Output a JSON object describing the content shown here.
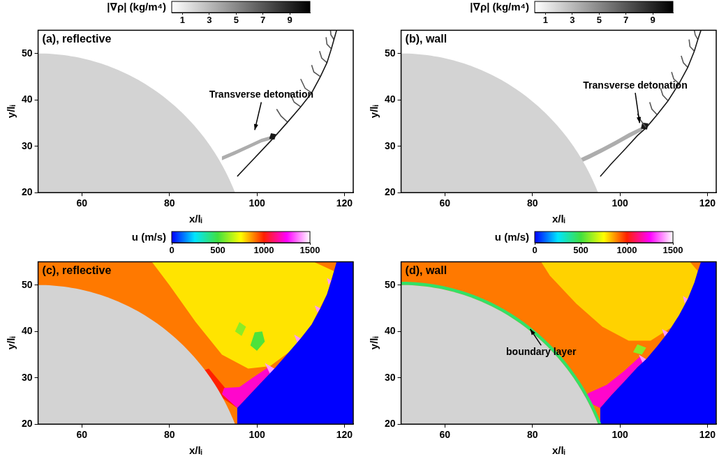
{
  "chart_data": [
    {
      "type": "field",
      "title": "(a), reflective",
      "xlabel": "x/lᵢ",
      "ylabel": "y/lᵢ",
      "xlim": [
        50,
        122
      ],
      "ylim": [
        20,
        55
      ],
      "xticks": [
        60,
        80,
        100,
        120
      ],
      "yticks": [
        20,
        30,
        40,
        50
      ],
      "grid": false,
      "colorbar": {
        "label": "|∇ρ| (kg/m⁴)",
        "range": [
          0.2,
          10.5
        ],
        "ticks": [
          1,
          3,
          5,
          7,
          9
        ],
        "colors": [
          "#ffffff",
          "#000000"
        ]
      },
      "background_value": 0.2,
      "body": {
        "center": [
          50,
          1.25
        ],
        "radius": 48.75,
        "color": "#d3d3d3"
      },
      "regions": [
        {
          "x": [
            92,
            95,
            98,
            101,
            103.5,
            103.5,
            101,
            98,
            95,
            92
          ],
          "y": [
            27,
            28.2,
            29.5,
            30.8,
            31.5,
            32.3,
            31.6,
            30.3,
            29,
            27.8
          ],
          "value": 3.5
        },
        {
          "x": [
            102.8,
            104,
            104.4,
            103.2
          ],
          "y": [
            31.6,
            31.4,
            32.6,
            32.8
          ],
          "value": 9.5
        }
      ],
      "curves": [
        {
          "x": [
            95.5,
            98,
            101,
            104,
            107,
            110,
            112.5,
            114.5,
            116,
            117,
            117.6,
            118.2
          ],
          "y": [
            23.5,
            26,
            29,
            32,
            35.2,
            38.5,
            41.5,
            45,
            48,
            51,
            53,
            55
          ],
          "value": 9.5
        },
        {
          "x": [
            107,
            105.5,
            104.5
          ],
          "y": [
            35.2,
            36.5,
            38
          ],
          "value": 7
        },
        {
          "x": [
            110,
            108.5,
            107.5
          ],
          "y": [
            38.5,
            39.5,
            41.5
          ],
          "value": 7
        },
        {
          "x": [
            112.5,
            111,
            110
          ],
          "y": [
            41.5,
            42.5,
            44.5
          ],
          "value": 7
        },
        {
          "x": [
            114.5,
            113,
            112.5
          ],
          "y": [
            45,
            46,
            47.5
          ],
          "value": 7
        },
        {
          "x": [
            116,
            114.8,
            114.3
          ],
          "y": [
            48,
            49,
            50.5
          ],
          "value": 7
        },
        {
          "x": [
            117,
            116,
            115.8
          ],
          "y": [
            51,
            52,
            53.5
          ],
          "value": 7
        },
        {
          "x": [
            117.6,
            116.9,
            116.8
          ],
          "y": [
            53,
            54,
            55
          ],
          "value": 7
        }
      ],
      "annotations": [
        {
          "text": "Transverse detonation",
          "xy": [
            99.5,
            33.5
          ],
          "xytext": [
            101,
            41
          ]
        }
      ]
    },
    {
      "type": "field",
      "title": "(b), wall",
      "xlabel": "x/lᵢ",
      "ylabel": "y/lᵢ",
      "xlim": [
        50,
        122
      ],
      "ylim": [
        20,
        55
      ],
      "xticks": [
        60,
        80,
        100,
        120
      ],
      "yticks": [
        20,
        30,
        40,
        50
      ],
      "grid": false,
      "colorbar": {
        "label": "|∇ρ| (kg/m⁴)",
        "range": [
          0.2,
          10.5
        ],
        "ticks": [
          1,
          3,
          5,
          7,
          9
        ],
        "colors": [
          "#ffffff",
          "#000000"
        ]
      },
      "background_value": 0.2,
      "body": {
        "center": [
          50,
          1.25
        ],
        "radius": 48.75,
        "color": "#d3d3d3"
      },
      "regions": [
        {
          "x": [
            90,
            93,
            96,
            99,
            102,
            105,
            105.5,
            102,
            99,
            96,
            93,
            90
          ],
          "y": [
            26,
            27.3,
            28.7,
            30.2,
            31.8,
            33.3,
            34.4,
            32.8,
            31.2,
            29.7,
            28.3,
            27
          ],
          "value": 3.5
        },
        {
          "x": [
            104.8,
            106.2,
            106.5,
            105.1
          ],
          "y": [
            33.8,
            33.6,
            34.9,
            35.1
          ],
          "value": 9.5
        }
      ],
      "curves": [
        {
          "x": [
            95.5,
            98,
            101,
            104,
            106,
            108.5,
            111,
            113.5,
            115.5,
            117,
            117.8,
            118.5
          ],
          "y": [
            23.5,
            26.2,
            29.2,
            32.3,
            34,
            36.8,
            39.8,
            43.5,
            47,
            50.5,
            53,
            55
          ],
          "value": 9.5
        },
        {
          "x": [
            106,
            104.8,
            104
          ],
          "y": [
            34,
            35.5,
            37
          ],
          "value": 7
        },
        {
          "x": [
            108.5,
            107.3,
            106.8
          ],
          "y": [
            36.8,
            38,
            39.5
          ],
          "value": 7
        },
        {
          "x": [
            111,
            109.8,
            109.3
          ],
          "y": [
            39.8,
            41,
            42.5
          ],
          "value": 7
        },
        {
          "x": [
            113.5,
            112.3,
            111.8
          ],
          "y": [
            43.5,
            44.5,
            46
          ],
          "value": 7
        },
        {
          "x": [
            115.5,
            114.5,
            114
          ],
          "y": [
            47,
            48,
            49.5
          ],
          "value": 7
        },
        {
          "x": [
            117,
            116,
            115.8
          ],
          "y": [
            50.5,
            51.5,
            53
          ],
          "value": 7
        },
        {
          "x": [
            117.8,
            117.2,
            117
          ],
          "y": [
            53,
            54,
            55
          ],
          "value": 7
        }
      ],
      "annotations": [
        {
          "text": "Transverse detonation",
          "xy": [
            104.5,
            35
          ],
          "xytext": [
            103.5,
            43
          ]
        }
      ]
    },
    {
      "type": "field",
      "title": "(c), reflective",
      "xlabel": "x/lᵢ",
      "ylabel": "y/lᵢ",
      "xlim": [
        50,
        122
      ],
      "ylim": [
        20,
        55
      ],
      "xticks": [
        60,
        80,
        100,
        120
      ],
      "yticks": [
        20,
        30,
        40,
        50
      ],
      "grid": false,
      "colorbar": {
        "label": "u (m/s)",
        "range": [
          0,
          1500
        ],
        "ticks": [
          0,
          500,
          1000,
          1500
        ],
        "colors": [
          "#0000ff",
          "#00e5ff",
          "#40e040",
          "#ffff00",
          "#ff2000",
          "#ff00ff",
          "#ffffff"
        ]
      },
      "background_value": 900,
      "body": {
        "center": [
          50,
          1.25
        ],
        "radius": 48.75,
        "color": "#d3d3d3"
      },
      "regions": [
        {
          "x": [
            76,
            90,
            104,
            113,
            117.6,
            116,
            112.5,
            108,
            103,
            98,
            92,
            86,
            80
          ],
          "y": [
            55,
            55,
            55,
            55,
            53,
            48,
            41.5,
            36,
            32.5,
            32,
            35,
            42,
            50
          ],
          "value": 780
        },
        {
          "x": [
            86,
            90,
            95.5,
            93,
            89
          ],
          "y": [
            31,
            27,
            23.5,
            27.5,
            32
          ],
          "value": 1000
        },
        {
          "x": [
            92,
            95.5,
            98,
            101,
            104,
            102.5,
            99,
            96,
            92.5
          ],
          "y": [
            26.5,
            23.5,
            26,
            29,
            32,
            32.2,
            30,
            28,
            27.8
          ],
          "value": 1200
        },
        {
          "x": [
            98.5,
            100,
            101.8,
            101.2,
            99.5
          ],
          "y": [
            37,
            35.8,
            37.8,
            40,
            39.8
          ],
          "value": 520
        },
        {
          "x": [
            95,
            96.5,
            97.5,
            96
          ],
          "y": [
            40,
            39,
            41,
            42
          ],
          "value": 600
        },
        {
          "x": [
            104,
            101.8,
            103
          ],
          "y": [
            32,
            33.2,
            30.8
          ],
          "value": 1400
        },
        {
          "x": [
            110,
            108.5,
            109.2
          ],
          "y": [
            38.5,
            39.3,
            37.6
          ],
          "value": 1400
        },
        {
          "x": [
            114.5,
            113.2,
            113.8
          ],
          "y": [
            45,
            45.6,
            44
          ],
          "value": 1400
        },
        {
          "x": [
            117,
            116,
            116.4
          ],
          "y": [
            51,
            51.5,
            50
          ],
          "value": 1400
        },
        {
          "x": [
            95.5,
            98,
            101,
            104,
            107,
            110,
            112.5,
            114.5,
            116,
            117,
            117.6,
            118.2,
            122,
            122,
            95.5
          ],
          "y": [
            23.5,
            26,
            29,
            32,
            35.2,
            38.5,
            41.5,
            45,
            48,
            51,
            53,
            55,
            55,
            20,
            20
          ],
          "value": 0
        }
      ],
      "curves": [],
      "annotations": []
    },
    {
      "type": "field",
      "title": "(d), wall",
      "xlabel": "x/lᵢ",
      "ylabel": "y/lᵢ",
      "xlim": [
        50,
        122
      ],
      "ylim": [
        20,
        55
      ],
      "xticks": [
        60,
        80,
        100,
        120
      ],
      "yticks": [
        20,
        30,
        40,
        50
      ],
      "grid": false,
      "colorbar": {
        "label": "u (m/s)",
        "range": [
          0,
          1500
        ],
        "ticks": [
          0,
          500,
          1000,
          1500
        ],
        "colors": [
          "#0000ff",
          "#00e5ff",
          "#40e040",
          "#ffff00",
          "#ff2000",
          "#ff00ff",
          "#ffffff"
        ]
      },
      "background_value": 900,
      "body": {
        "center": [
          50,
          1.25
        ],
        "radius": 48.75,
        "color": "#d3d3d3"
      },
      "boundary_layer": {
        "thickness": 0.7,
        "value": 450
      },
      "regions": [
        {
          "x": [
            82,
            96,
            110,
            116,
            117.8,
            116,
            112,
            107,
            102,
            96,
            90,
            84
          ],
          "y": [
            55,
            55,
            55,
            55,
            53,
            47,
            41,
            38,
            38,
            41,
            46,
            52
          ],
          "value": 800
        },
        {
          "x": [
            84,
            89,
            95.5,
            92,
            87
          ],
          "y": [
            31,
            27,
            23.5,
            27,
            31.5
          ],
          "value": 1000
        },
        {
          "x": [
            91,
            95.5,
            98,
            101,
            104,
            106,
            104.5,
            101,
            97,
            93
          ],
          "y": [
            25.5,
            23.5,
            26.2,
            29.2,
            32.3,
            34,
            34.5,
            31.5,
            28.5,
            26.8
          ],
          "value": 1200
        },
        {
          "x": [
            103,
            105,
            106,
            104
          ],
          "y": [
            35.5,
            35,
            36.5,
            37.2
          ],
          "value": 600
        },
        {
          "x": [
            106,
            104.3,
            105.2
          ],
          "y": [
            34,
            35,
            33.2
          ],
          "value": 1400
        },
        {
          "x": [
            111,
            109.6,
            110.2
          ],
          "y": [
            39.8,
            40.5,
            38.9
          ],
          "value": 1400
        },
        {
          "x": [
            115.5,
            114.4,
            114.8
          ],
          "y": [
            47,
            47.6,
            46
          ],
          "value": 1400
        },
        {
          "x": [
            95.5,
            98,
            101,
            104,
            106,
            108.5,
            111,
            113.5,
            115.5,
            117,
            117.8,
            118.5,
            122,
            122,
            95.5
          ],
          "y": [
            23.5,
            26.2,
            29.2,
            32.3,
            34,
            36.8,
            39.8,
            43.5,
            47,
            50.5,
            53,
            55,
            55,
            20,
            20
          ],
          "value": 0
        }
      ],
      "curves": [],
      "annotations": [
        {
          "text": "boundary layer",
          "xy": [
            79.5,
            40.5
          ],
          "xytext": [
            82,
            35.5
          ]
        }
      ]
    }
  ]
}
